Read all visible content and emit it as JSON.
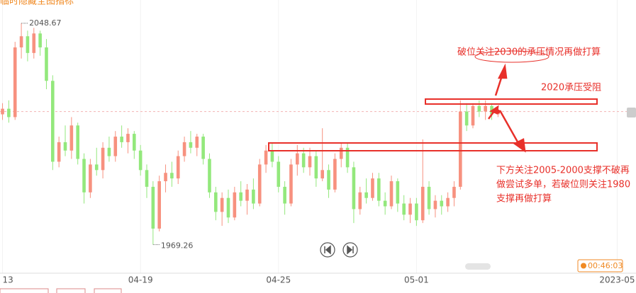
{
  "chart_data": {
    "type": "candlestick",
    "title": "临时隐藏全图指标",
    "up_color": "#f7917f",
    "down_color": "#93e87c",
    "ylim": [
      1958,
      2057
    ],
    "xlim": [
      -0.4,
      101
    ],
    "xticks": [
      {
        "value": 0,
        "label": "13"
      },
      {
        "value": 22,
        "label": "04-19"
      },
      {
        "value": 44,
        "label": "04-25"
      },
      {
        "value": 66,
        "label": "05-01"
      },
      {
        "value": 98,
        "label": "2023-05"
      }
    ],
    "open": [
      2016,
      2018,
      2015,
      2040,
      2044,
      2038,
      2045,
      2040,
      2028,
      1999,
      2006,
      2003,
      2012,
      2000,
      1988,
      1998,
      1996,
      2004,
      2001,
      2008,
      2006,
      2009,
      2003,
      1996,
      1990,
      1975,
      1992,
      1995,
      1993,
      2001,
      2006,
      2004,
      2008,
      2000,
      1988,
      1981,
      1986,
      1979,
      1988,
      1985,
      1989,
      1984,
      1998,
      2003,
      1999,
      1990,
      1984,
      1998,
      2002,
      1997,
      2001,
      1993,
      1996,
      1989,
      2000,
      2004,
      1997,
      1982,
      1988,
      1986,
      1993,
      1985,
      1983,
      1992,
      1984,
      1980,
      1984,
      1978,
      1990,
      1982,
      1985,
      1983,
      1986,
      1990,
      2017,
      2012,
      2019,
      2017,
      2019,
      2016
    ],
    "high": [
      2020,
      2021,
      2042,
      2048.67,
      2046,
      2047,
      2046,
      2043,
      2030,
      2008,
      2012,
      2015,
      2013,
      2002,
      2000,
      2004,
      2006,
      2008,
      2010,
      2012,
      2011,
      2010,
      2005,
      1998,
      1992,
      1994,
      1998,
      1999,
      2003,
      2008,
      2010,
      2009,
      2009,
      2002,
      1990,
      1988,
      1989,
      1990,
      1992,
      1991,
      1993,
      2000,
      2005,
      2006,
      2001,
      1992,
      2000,
      2005,
      2004,
      2004,
      2003,
      2011,
      1998,
      2002,
      2006,
      2006,
      1999,
      1990,
      1993,
      1995,
      1995,
      1988,
      1994,
      1993,
      1987,
      1986,
      1986,
      2007,
      1992,
      1987,
      1987,
      1988,
      1992,
      2021,
      2020,
      2020,
      2021,
      2021,
      2020,
      2018
    ],
    "low": [
      2014,
      2013,
      2014,
      2036,
      2035,
      2036,
      2037,
      2025,
      1996,
      1997,
      2001,
      2000,
      1998,
      1984,
      1986,
      1994,
      1993,
      1999,
      1999,
      2004,
      2002,
      2000,
      1994,
      1986,
      1969.26,
      1974,
      1988,
      1990,
      1991,
      1999,
      2002,
      2001,
      1998,
      1986,
      1978,
      1976,
      1977,
      1978,
      1983,
      1980,
      1982,
      1983,
      1995,
      1997,
      1988,
      1980,
      1983,
      1994,
      1995,
      1994,
      1990,
      1992,
      1986,
      1988,
      1997,
      1995,
      1977,
      1980,
      1984,
      1985,
      1983,
      1980,
      1982,
      1981,
      1978,
      1977,
      1976,
      1977,
      1980,
      1979,
      1980,
      1981,
      1983,
      1989,
      2010,
      2011,
      2015,
      2014,
      2014,
      2015
    ],
    "close": [
      2018,
      2015,
      2040,
      2044,
      2038,
      2045,
      2040,
      2028,
      1999,
      2006,
      2003,
      2012,
      2000,
      1988,
      1998,
      1996,
      2004,
      2001,
      2008,
      2006,
      2009,
      2003,
      1996,
      1990,
      1975,
      1992,
      1995,
      1993,
      2001,
      2006,
      2004,
      2008,
      2000,
      1988,
      1981,
      1986,
      1979,
      1988,
      1985,
      1989,
      1984,
      1998,
      2003,
      1999,
      1990,
      1984,
      1998,
      2002,
      1997,
      2001,
      1993,
      1996,
      1989,
      2000,
      2004,
      1997,
      1982,
      1988,
      1986,
      1993,
      1985,
      1983,
      1992,
      1984,
      1980,
      1984,
      1978,
      1990,
      1982,
      1985,
      1983,
      1986,
      1990,
      2017,
      2012,
      2019,
      2017,
      2019,
      2016,
      2017
    ],
    "annotations": {
      "upper_note": "破位关注2030的承压情况再做打算",
      "resistance_note": "2020承压受阻",
      "lower_note": [
        "下方关注2005-2000支撑不破再",
        "做尝试多单，若破位则关注1980",
        "支撑再做打算"
      ]
    },
    "timer": "00:46:03"
  }
}
